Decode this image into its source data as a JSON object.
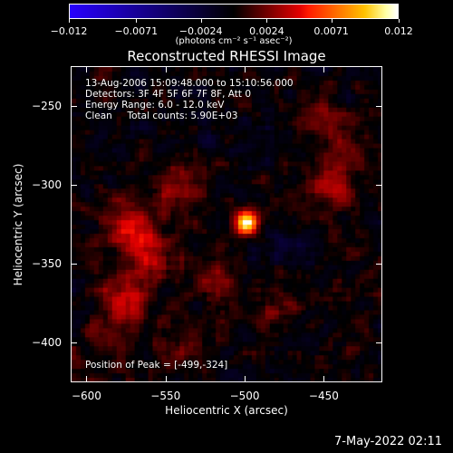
{
  "colorbar": {
    "ticks": [
      "-0.012",
      "-0.0071",
      "-0.0024",
      "0.0024",
      "0.0071",
      "0.012"
    ],
    "tick_values": [
      -0.012,
      -0.0071,
      -0.0024,
      0.0024,
      0.0071,
      0.012
    ],
    "units": "(photons cm⁻² s⁻¹ asec⁻²)",
    "range": [
      -0.012,
      0.012
    ]
  },
  "chart_data": {
    "type": "heatmap",
    "title": "Reconstructed RHESSI Image",
    "xlabel": "Heliocentric X (arcsec)",
    "ylabel": "Heliocentric Y (arcsec)",
    "xlim": [
      -610,
      -413
    ],
    "ylim": [
      -425,
      -225
    ],
    "x_ticks": [
      "-600",
      "-550",
      "-500",
      "-450"
    ],
    "x_tick_values": [
      -600,
      -550,
      -500,
      -450
    ],
    "y_ticks": [
      "-250",
      "-300",
      "-350",
      "-400"
    ],
    "y_tick_values": [
      -250,
      -300,
      -350,
      -400
    ],
    "peak": [
      -499,
      -324
    ],
    "sources": [
      {
        "x": -499,
        "y": -324,
        "amp": 1.0
      },
      {
        "x": -575,
        "y": -325,
        "amp": 0.42
      },
      {
        "x": -560,
        "y": -345,
        "amp": 0.35
      },
      {
        "x": -575,
        "y": -375,
        "amp": 0.38
      },
      {
        "x": -545,
        "y": -300,
        "amp": 0.25
      },
      {
        "x": -445,
        "y": -300,
        "amp": 0.3
      },
      {
        "x": -440,
        "y": -275,
        "amp": 0.22
      },
      {
        "x": -455,
        "y": -250,
        "amp": 0.2
      },
      {
        "x": -520,
        "y": -360,
        "amp": 0.22
      },
      {
        "x": -480,
        "y": -380,
        "amp": 0.18
      },
      {
        "x": -585,
        "y": -400,
        "amp": 0.15
      },
      {
        "x": -540,
        "y": -405,
        "amp": 0.14
      },
      {
        "x": -500,
        "y": -270,
        "amp": -0.12
      },
      {
        "x": -470,
        "y": -340,
        "amp": -0.14
      },
      {
        "x": -530,
        "y": -260,
        "amp": -0.1
      }
    ],
    "annotations": [
      "13-Aug-2006 15:09:48.000 to 15:10:56.000",
      "Detectors: 3F 4F 5F 6F 7F 8F, Att 0",
      "Energy Range: 6.0 - 12.0 keV",
      "Clean     Total counts: 5.90E+03"
    ],
    "peak_label": "Position of Peak = [-499,-324]"
  },
  "footer": "7-May-2022 02:11"
}
